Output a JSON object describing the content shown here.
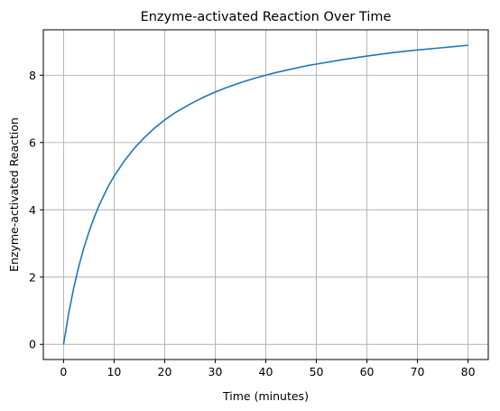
{
  "chart_data": {
    "type": "line",
    "title": "Enzyme-activated Reaction Over Time",
    "xlabel": "Time (minutes)",
    "ylabel": "Enzyme-activated Reaction",
    "xlim": [
      -4,
      84
    ],
    "ylim": [
      -0.45,
      9.35
    ],
    "xticks": [
      0,
      10,
      20,
      30,
      40,
      50,
      60,
      70,
      80
    ],
    "yticks": [
      0,
      2,
      4,
      6,
      8
    ],
    "grid": true,
    "series": [
      {
        "color": "#1f77b4",
        "x": [
          0,
          1,
          2,
          3,
          4,
          5,
          6,
          7,
          8,
          9,
          10,
          12,
          14,
          16,
          18,
          20,
          22,
          25,
          28,
          30,
          32,
          35,
          38,
          40,
          42,
          45,
          48,
          50,
          55,
          60,
          65,
          70,
          75,
          80
        ],
        "y": [
          0,
          0.91,
          1.67,
          2.31,
          2.86,
          3.33,
          3.75,
          4.12,
          4.44,
          4.74,
          5.0,
          5.45,
          5.83,
          6.15,
          6.43,
          6.67,
          6.88,
          7.14,
          7.37,
          7.5,
          7.62,
          7.78,
          7.92,
          8.0,
          8.08,
          8.18,
          8.28,
          8.33,
          8.46,
          8.57,
          8.67,
          8.75,
          8.82,
          8.89
        ]
      }
    ]
  }
}
